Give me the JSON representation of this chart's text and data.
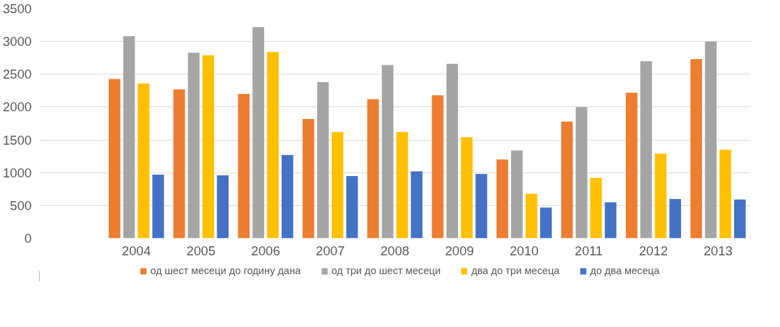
{
  "chart_data": {
    "type": "bar",
    "categories": [
      null,
      "2004",
      "2005",
      "2006",
      "2007",
      "2008",
      "2009",
      "2010",
      "2011",
      "2012",
      "2013"
    ],
    "series": [
      {
        "name": "од шест месеци до годину дана",
        "color": "#ed7d31",
        "values": [
          null,
          2430,
          2270,
          2200,
          1820,
          2120,
          2180,
          1200,
          1780,
          2220,
          2730
        ]
      },
      {
        "name": "од три до шест месеци",
        "color": "#a5a5a5",
        "values": [
          null,
          3080,
          2830,
          3220,
          2380,
          2640,
          2660,
          1340,
          2000,
          2700,
          3000
        ]
      },
      {
        "name": "два до три месеца",
        "color": "#ffc000",
        "values": [
          null,
          2360,
          2790,
          2840,
          1620,
          1620,
          1540,
          680,
          920,
          1290,
          1350
        ]
      },
      {
        "name": "до два месеца",
        "color": "#4472c4",
        "values": [
          null,
          970,
          960,
          1270,
          950,
          1020,
          980,
          470,
          550,
          600,
          590
        ]
      }
    ],
    "ylim": [
      0,
      3500
    ],
    "yticks": [
      0,
      500,
      1000,
      1500,
      2000,
      2500,
      3000,
      3500
    ],
    "grid": "y",
    "legend": "bottom"
  }
}
